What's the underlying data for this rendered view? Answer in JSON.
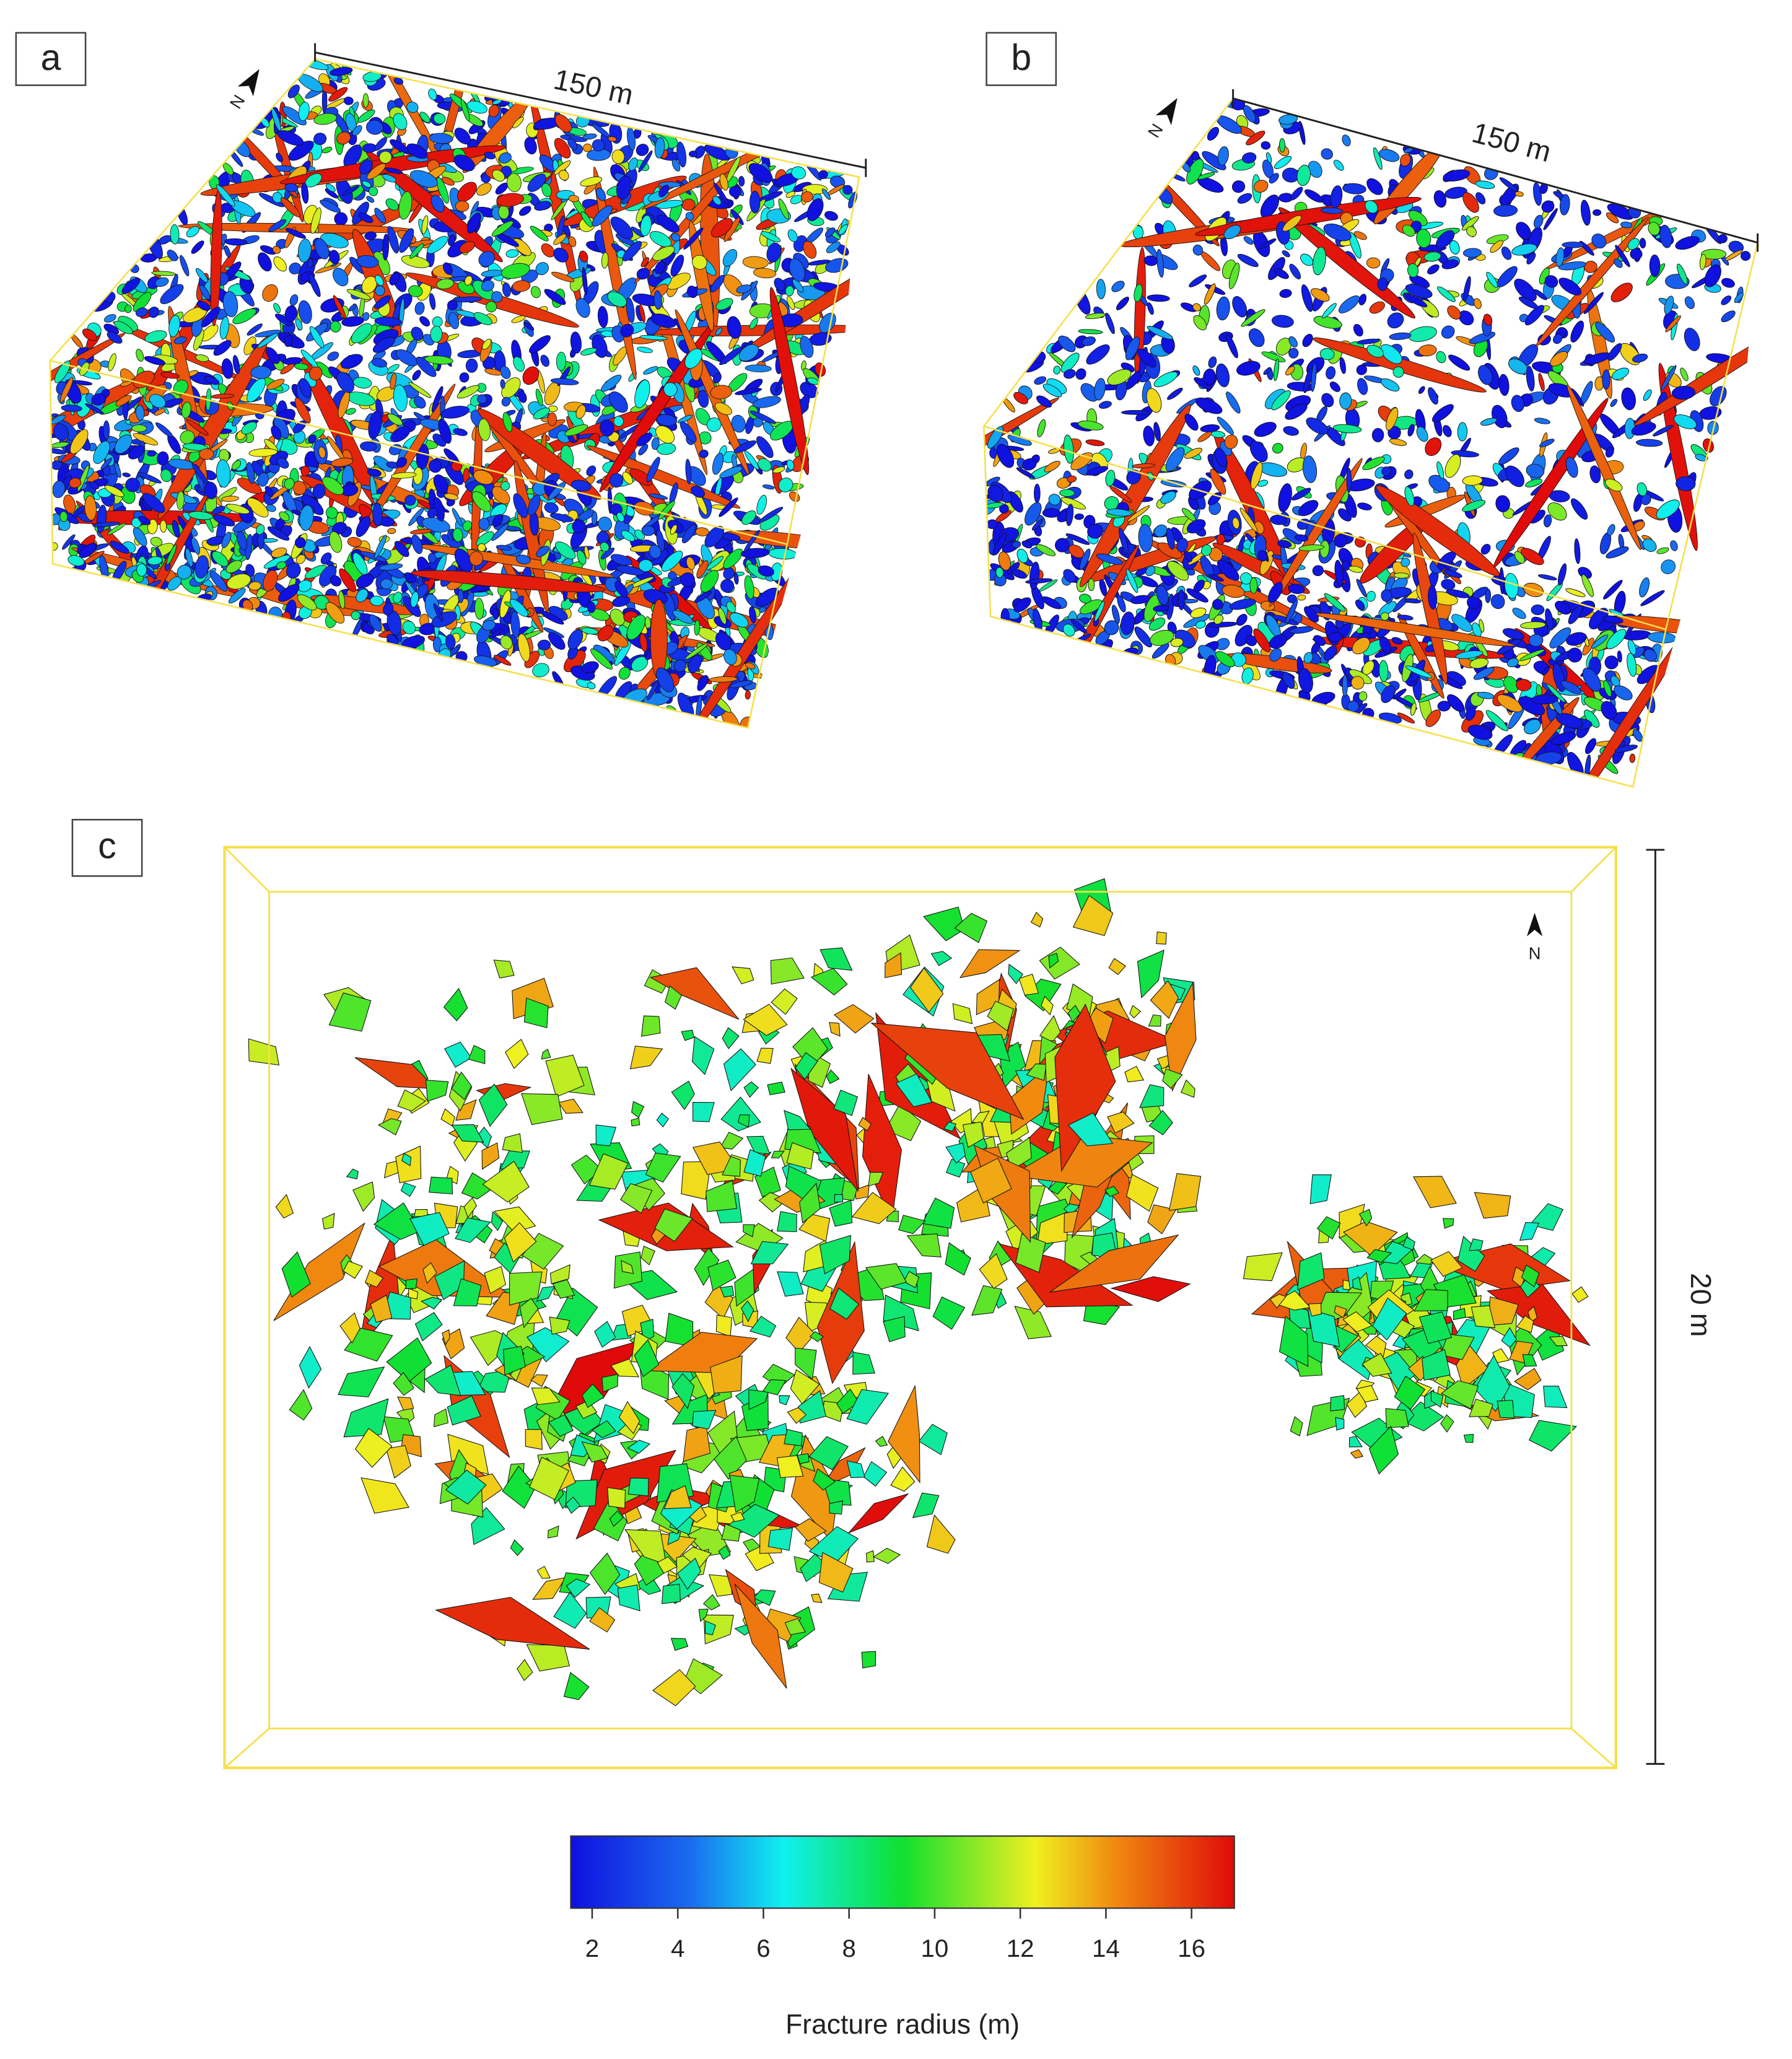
{
  "panels": [
    {
      "label": "a",
      "scale_label": "150 m",
      "north": "N"
    },
    {
      "label": "b",
      "scale_label": "150 m",
      "north": "N"
    },
    {
      "label": "c",
      "scale_label": "20 m",
      "north": "N"
    }
  ],
  "colorbar": {
    "label": "Fracture radius (m)",
    "lim": [
      1.5,
      17
    ],
    "ticks": [
      2,
      4,
      6,
      8,
      10,
      12,
      14,
      16
    ]
  }
}
